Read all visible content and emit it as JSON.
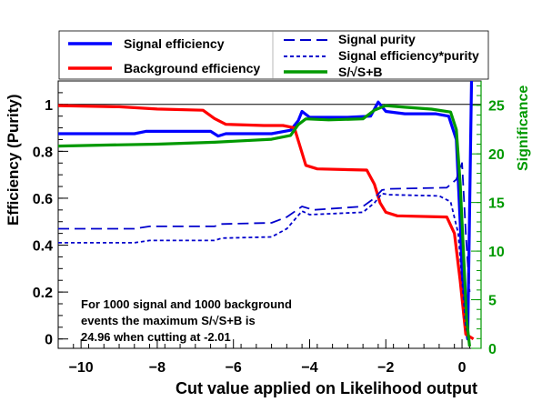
{
  "chart_data": {
    "type": "line",
    "xlabel": "Cut value applied on Likelihood output",
    "ylabel": "Efficiency (Purity)",
    "y2label": "Significance",
    "xlim": [
      -10.6,
      0.5
    ],
    "ylim": [
      -0.04,
      1.1
    ],
    "y2lim": [
      0.0,
      27.5
    ],
    "x_ticks": [
      -10,
      -8,
      -6,
      -4,
      -2,
      0
    ],
    "y_ticks": [
      0,
      0.2,
      0.4,
      0.6,
      0.8,
      1
    ],
    "y2_ticks": [
      0,
      5,
      10,
      15,
      20,
      25
    ],
    "reference_line_y": 1,
    "legend": [
      {
        "label": "Signal efficiency",
        "color": "#0000ff",
        "style": "solid",
        "width": "thick"
      },
      {
        "label": "Background efficiency",
        "color": "#ff0000",
        "style": "solid",
        "width": "thick"
      },
      {
        "label": "Signal purity",
        "color": "#0000cc",
        "style": "long-dash",
        "width": "medium"
      },
      {
        "label": "Signal efficiency*purity",
        "color": "#0000cc",
        "style": "short-dash",
        "width": "medium"
      },
      {
        "label": "S/√S+B",
        "color": "#009900",
        "style": "solid",
        "width": "thick"
      }
    ],
    "annotation": [
      "For 1000 signal and 1000 background",
      "events the maximum S/√S+B is",
      "24.96 when cutting at -2.01"
    ],
    "series": [
      {
        "name": "Signal efficiency",
        "axis": "left",
        "color": "#0000ff",
        "points": [
          [
            -10.6,
            0.875
          ],
          [
            -8.6,
            0.875
          ],
          [
            -8.3,
            0.885
          ],
          [
            -6.6,
            0.885
          ],
          [
            -6.4,
            0.865
          ],
          [
            -6.2,
            0.875
          ],
          [
            -5.0,
            0.875
          ],
          [
            -4.5,
            0.89
          ],
          [
            -4.3,
            0.93
          ],
          [
            -4.2,
            0.97
          ],
          [
            -4.0,
            0.945
          ],
          [
            -3.0,
            0.945
          ],
          [
            -2.4,
            0.95
          ],
          [
            -2.2,
            1.01
          ],
          [
            -2.0,
            0.97
          ],
          [
            -1.5,
            0.96
          ],
          [
            -0.7,
            0.96
          ],
          [
            -0.35,
            0.95
          ],
          [
            -0.15,
            0.85
          ],
          [
            -0.05,
            0.5
          ],
          [
            0.05,
            0.1
          ],
          [
            0.15,
            0.0
          ],
          [
            0.25,
            1.1
          ]
        ]
      },
      {
        "name": "Background efficiency",
        "axis": "left",
        "color": "#ff0000",
        "points": [
          [
            -10.6,
            0.995
          ],
          [
            -9.0,
            0.99
          ],
          [
            -8.0,
            0.98
          ],
          [
            -6.8,
            0.975
          ],
          [
            -6.5,
            0.94
          ],
          [
            -6.2,
            0.915
          ],
          [
            -5.2,
            0.91
          ],
          [
            -4.7,
            0.91
          ],
          [
            -4.4,
            0.9
          ],
          [
            -4.25,
            0.82
          ],
          [
            -4.1,
            0.74
          ],
          [
            -3.8,
            0.725
          ],
          [
            -2.5,
            0.72
          ],
          [
            -2.3,
            0.66
          ],
          [
            -2.15,
            0.58
          ],
          [
            -2.0,
            0.54
          ],
          [
            -1.7,
            0.525
          ],
          [
            -0.4,
            0.52
          ],
          [
            -0.2,
            0.45
          ],
          [
            -0.05,
            0.25
          ],
          [
            0.1,
            0.02
          ],
          [
            0.3,
            0.0
          ]
        ]
      },
      {
        "name": "Signal purity",
        "axis": "left",
        "color": "#0000cc",
        "points": [
          [
            -10.6,
            0.47
          ],
          [
            -8.6,
            0.47
          ],
          [
            -8.2,
            0.48
          ],
          [
            -6.5,
            0.48
          ],
          [
            -6.3,
            0.49
          ],
          [
            -5.0,
            0.495
          ],
          [
            -4.6,
            0.52
          ],
          [
            -4.2,
            0.565
          ],
          [
            -3.9,
            0.55
          ],
          [
            -2.6,
            0.565
          ],
          [
            -2.3,
            0.6
          ],
          [
            -2.1,
            0.635
          ],
          [
            -1.9,
            0.64
          ],
          [
            -0.4,
            0.645
          ],
          [
            -0.15,
            0.68
          ],
          [
            0.0,
            0.75
          ],
          [
            0.1,
            0.45
          ],
          [
            0.2,
            0.2
          ]
        ]
      },
      {
        "name": "Signal efficiency*purity",
        "axis": "left",
        "color": "#0000cc",
        "points": [
          [
            -10.6,
            0.41
          ],
          [
            -8.6,
            0.41
          ],
          [
            -8.2,
            0.42
          ],
          [
            -6.5,
            0.42
          ],
          [
            -6.3,
            0.43
          ],
          [
            -5.0,
            0.435
          ],
          [
            -4.6,
            0.47
          ],
          [
            -4.2,
            0.545
          ],
          [
            -4.0,
            0.53
          ],
          [
            -2.6,
            0.54
          ],
          [
            -2.3,
            0.58
          ],
          [
            -2.1,
            0.62
          ],
          [
            -1.9,
            0.615
          ],
          [
            -0.6,
            0.61
          ],
          [
            -0.3,
            0.585
          ],
          [
            -0.1,
            0.45
          ],
          [
            0.0,
            0.25
          ],
          [
            0.1,
            0.05
          ],
          [
            0.2,
            0.0
          ]
        ]
      },
      {
        "name": "S/√S+B",
        "axis": "right",
        "color": "#009900",
        "points": [
          [
            -10.6,
            20.8
          ],
          [
            -9.5,
            20.9
          ],
          [
            -8.0,
            21.0
          ],
          [
            -6.5,
            21.2
          ],
          [
            -5.0,
            21.5
          ],
          [
            -4.5,
            21.9
          ],
          [
            -4.3,
            23.0
          ],
          [
            -4.1,
            23.6
          ],
          [
            -3.5,
            23.5
          ],
          [
            -2.6,
            23.6
          ],
          [
            -2.3,
            24.5
          ],
          [
            -2.01,
            24.96
          ],
          [
            -1.5,
            24.8
          ],
          [
            -0.8,
            24.6
          ],
          [
            -0.3,
            24.3
          ],
          [
            -0.15,
            22.5
          ],
          [
            -0.05,
            17.0
          ],
          [
            0.05,
            9.0
          ],
          [
            0.12,
            3.0
          ],
          [
            0.2,
            0.2
          ]
        ]
      }
    ]
  }
}
